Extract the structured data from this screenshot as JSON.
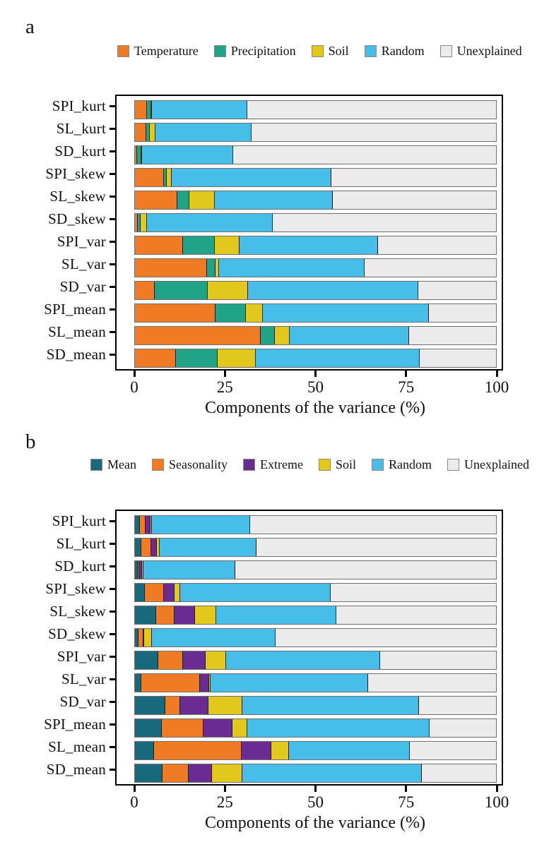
{
  "figure": {
    "panel_a_letter": "a",
    "panel_b_letter": "b",
    "axis_title": "Components of the variance (%)"
  },
  "chart_data": [
    {
      "panel_letter": "a",
      "type": "bar",
      "subtype": "horizontal_stacked",
      "xlabel": "Components of the variance (%)",
      "ylabel": "",
      "xticks": [
        0,
        25,
        50,
        75,
        100
      ],
      "xlim": [
        0,
        100
      ],
      "grid": false,
      "legend_position": "top",
      "categories": [
        "SPI_kurt",
        "SL_kurt",
        "SD_kurt",
        "SPI_skew",
        "SL_skew",
        "SD_skew",
        "SPI_var",
        "SL_var",
        "SD_var",
        "SPI_mean",
        "SL_mean",
        "SD_mean"
      ],
      "series": [
        {
          "name": "Temperature",
          "color": "#EF7C24",
          "values": [
            3.1,
            3.0,
            0.3,
            7.9,
            11.6,
            0.5,
            13.2,
            19.7,
            5.2,
            22.1,
            34.7,
            11.2
          ]
        },
        {
          "name": "Precipitation",
          "color": "#20A386",
          "values": [
            1.2,
            1.0,
            1.3,
            0.8,
            3.2,
            0.9,
            8.7,
            2.4,
            14.7,
            8.5,
            3.9,
            11.6
          ]
        },
        {
          "name": "Soil",
          "color": "#E2C71D",
          "values": [
            0.3,
            1.5,
            0.2,
            1.3,
            7.1,
            1.7,
            6.9,
            1.0,
            11.2,
            4.7,
            4.1,
            10.4
          ]
        },
        {
          "name": "Random",
          "color": "#47BEEA",
          "values": [
            26.4,
            26.5,
            25.2,
            44.2,
            32.8,
            34.8,
            38.4,
            40.4,
            47.2,
            45.9,
            33.1,
            45.5
          ]
        },
        {
          "name": "Unexplained",
          "color": "#EBEBEB",
          "values": [
            69.0,
            68.0,
            73.0,
            45.8,
            45.3,
            62.1,
            32.8,
            36.5,
            21.7,
            18.8,
            24.2,
            21.3
          ]
        }
      ]
    },
    {
      "panel_letter": "b",
      "type": "bar",
      "subtype": "horizontal_stacked",
      "xlabel": "Components of the variance (%)",
      "ylabel": "",
      "xticks": [
        0,
        25,
        50,
        75,
        100
      ],
      "xlim": [
        0,
        100
      ],
      "grid": false,
      "legend_position": "top",
      "categories": [
        "SPI_kurt",
        "SL_kurt",
        "SD_kurt",
        "SPI_skew",
        "SL_skew",
        "SD_skew",
        "SPI_var",
        "SL_var",
        "SD_var",
        "SPI_mean",
        "SL_mean",
        "SD_mean"
      ],
      "series": [
        {
          "name": "Mean",
          "color": "#17697B",
          "values": [
            1.1,
            1.6,
            0.6,
            2.5,
            5.6,
            0.7,
            6.3,
            1.6,
            8.3,
            7.2,
            5.1,
            7.4
          ]
        },
        {
          "name": "Seasonality",
          "color": "#EF7C24",
          "values": [
            1.6,
            2.7,
            0.4,
            5.3,
            5.1,
            1.4,
            6.9,
            16.3,
            4.1,
            11.6,
            24.2,
            7.2
          ]
        },
        {
          "name": "Extreme",
          "color": "#6A2C91",
          "values": [
            1.5,
            1.6,
            0.8,
            2.9,
            5.8,
            0.2,
            6.2,
            2.4,
            7.8,
            8.0,
            8.3,
            6.5
          ]
        },
        {
          "name": "Soil",
          "color": "#E2C71D",
          "values": [
            0.3,
            0.7,
            0.3,
            1.7,
            5.8,
            2.2,
            5.6,
            0.5,
            9.4,
            4.1,
            4.8,
            8.5
          ]
        },
        {
          "name": "Random",
          "color": "#47BEEA",
          "values": [
            27.3,
            26.8,
            25.5,
            41.7,
            33.2,
            34.2,
            42.7,
            43.6,
            48.9,
            50.6,
            33.6,
            49.6
          ]
        },
        {
          "name": "Unexplained",
          "color": "#EBEBEB",
          "values": [
            68.2,
            66.6,
            72.4,
            45.9,
            44.5,
            61.3,
            32.3,
            35.6,
            21.5,
            18.5,
            24.0,
            20.8
          ]
        }
      ]
    }
  ]
}
